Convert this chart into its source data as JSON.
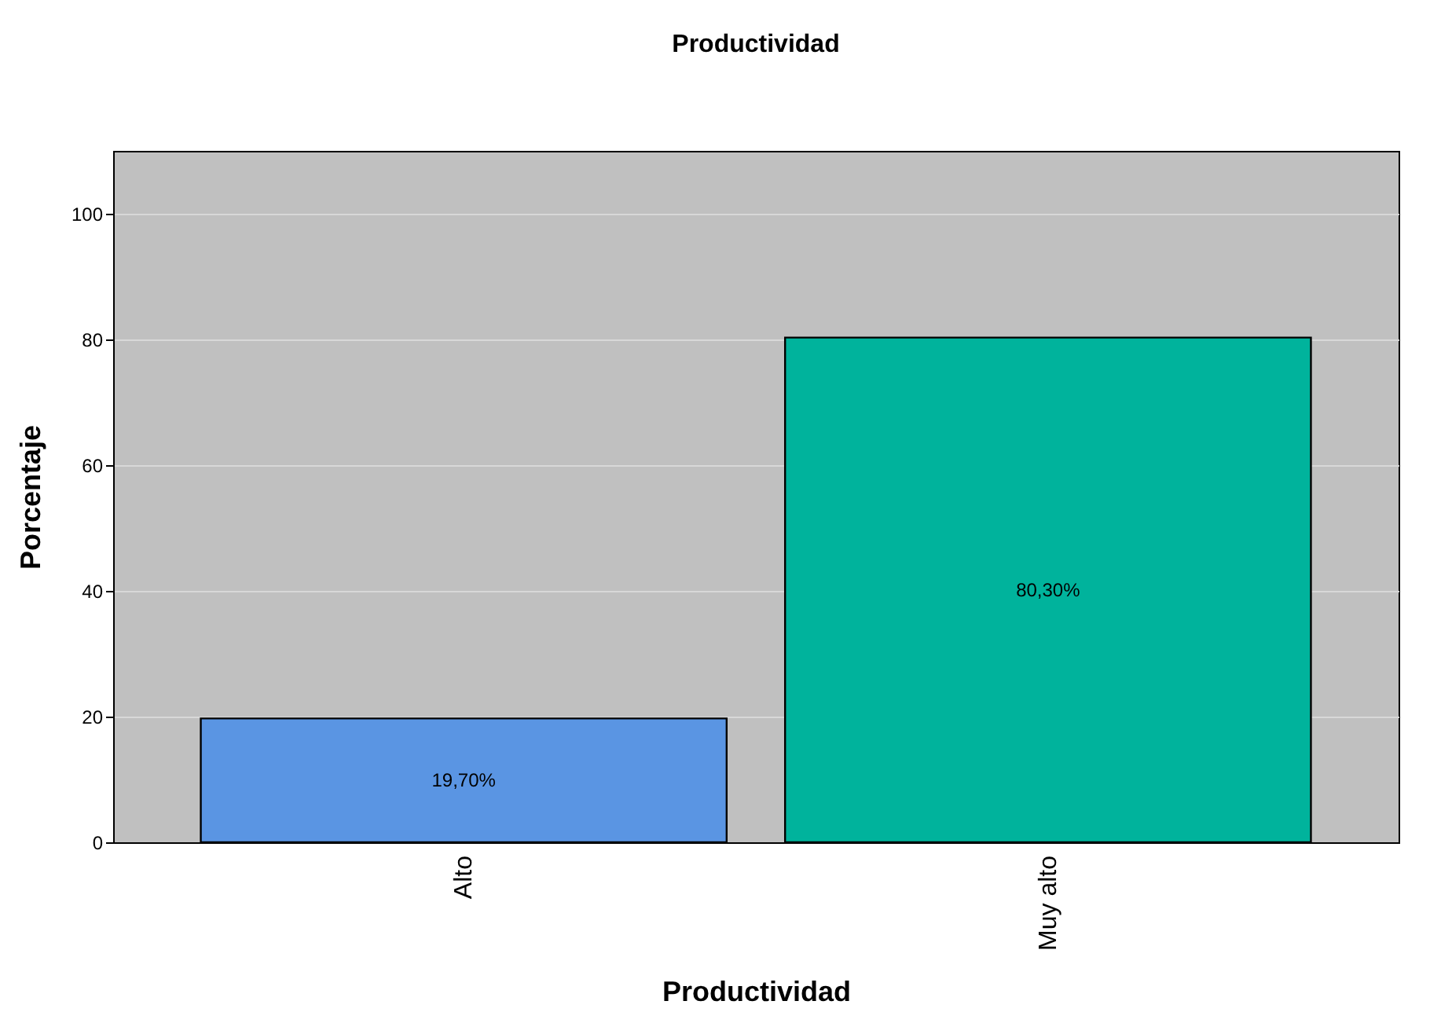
{
  "chart_data": {
    "type": "bar",
    "title": "Productividad",
    "xlabel": "Productividad",
    "ylabel": "Porcentaje",
    "categories": [
      "Alto",
      "Muy alto"
    ],
    "values": [
      19.7,
      80.3
    ],
    "colors": [
      "#5a95e3",
      "#00b39c"
    ],
    "value_labels": [
      "19,70%",
      "80,30%"
    ],
    "ylim": [
      0,
      110
    ],
    "yticks": [
      0,
      20,
      40,
      60,
      80,
      100
    ],
    "grid": "y"
  }
}
